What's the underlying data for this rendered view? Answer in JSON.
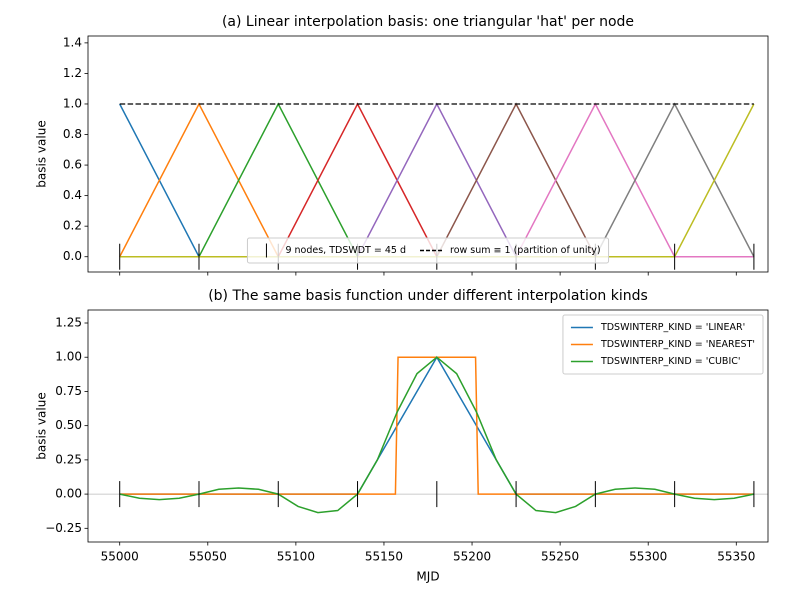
{
  "chart_data": [
    {
      "type": "line",
      "title": "(a) Linear interpolation basis: one triangular 'hat' per node",
      "ylabel": "basis value",
      "x": [
        55000,
        55045,
        55090,
        55135,
        55180,
        55225,
        55270,
        55315,
        55360
      ],
      "series": [
        {
          "color": "#1f77b4",
          "values": [
            1,
            0,
            0,
            0,
            0,
            0,
            0,
            0,
            0
          ]
        },
        {
          "color": "#ff7f0e",
          "values": [
            0,
            1,
            0,
            0,
            0,
            0,
            0,
            0,
            0
          ]
        },
        {
          "color": "#2ca02c",
          "values": [
            0,
            0,
            1,
            0,
            0,
            0,
            0,
            0,
            0
          ]
        },
        {
          "color": "#d62728",
          "values": [
            0,
            0,
            0,
            1,
            0,
            0,
            0,
            0,
            0
          ]
        },
        {
          "color": "#9467bd",
          "values": [
            0,
            0,
            0,
            0,
            1,
            0,
            0,
            0,
            0
          ]
        },
        {
          "color": "#8c564b",
          "values": [
            0,
            0,
            0,
            0,
            0,
            1,
            0,
            0,
            0
          ]
        },
        {
          "color": "#e377c2",
          "values": [
            0,
            0,
            0,
            0,
            0,
            0,
            1,
            0,
            0
          ]
        },
        {
          "color": "#7f7f7f",
          "values": [
            0,
            0,
            0,
            0,
            0,
            0,
            0,
            1,
            0
          ]
        },
        {
          "color": "#bcbd22",
          "values": [
            0,
            0,
            0,
            0,
            0,
            0,
            0,
            0,
            1
          ]
        },
        {
          "name": "row sum ≡ 1 (partition of unity)",
          "color": "#000000",
          "style": "dashed",
          "values": [
            1,
            1,
            1,
            1,
            1,
            1,
            1,
            1,
            1
          ]
        }
      ],
      "nodes": {
        "name": "9 nodes, TDSWDT = 45 d",
        "color": "#000000",
        "x": [
          55000,
          55045,
          55090,
          55135,
          55180,
          55225,
          55270,
          55315,
          55360
        ]
      },
      "xlim": [
        54982,
        55368
      ],
      "xticks": [
        55000,
        55050,
        55100,
        55150,
        55200,
        55250,
        55300,
        55350
      ],
      "ylim": [
        -0.1,
        1.445
      ],
      "yticks": [
        {
          "value": 0,
          "label": "0.0"
        },
        0.2,
        0.4,
        0.6,
        0.8,
        {
          "value": 1,
          "label": "1.0"
        },
        1.2,
        1.4
      ],
      "legend": "lower center",
      "legend_columns": 2
    },
    {
      "type": "line",
      "title": "(b) The same basis function under different interpolation kinds",
      "ylabel": "basis value",
      "xlabel": "MJD",
      "series": [
        {
          "name": "TDSWINTERP_KIND = 'LINEAR'",
          "color": "#1f77b4",
          "x": [
            55000,
            55045,
            55090,
            55135,
            55180,
            55225,
            55270,
            55315,
            55360
          ],
          "values": [
            0,
            0,
            0,
            0,
            1,
            0,
            0,
            0,
            0
          ]
        },
        {
          "name": "TDSWINTERP_KIND = 'NEAREST'",
          "color": "#ff7f0e",
          "x": [
            55000,
            55156.5,
            55158,
            55202,
            55203.5,
            55360
          ],
          "values": [
            0,
            0,
            1,
            1,
            0,
            0
          ]
        },
        {
          "name": "TDSWINTERP_KIND = 'CUBIC'",
          "color": "#2ca02c",
          "x": [
            55000,
            55011.25,
            55022.5,
            55033.75,
            55045,
            55056.25,
            55067.5,
            55078.75,
            55090,
            55101.25,
            55112.5,
            55123.75,
            55135,
            55146.25,
            55157.5,
            55168.75,
            55180,
            55191.25,
            55202.5,
            55213.75,
            55225,
            55236.25,
            55247.5,
            55258.75,
            55270,
            55281.25,
            55292.5,
            55303.75,
            55315,
            55326.25,
            55337.5,
            55348.75,
            55360
          ],
          "values": [
            0,
            -0.03,
            -0.04,
            -0.03,
            0,
            0.035,
            0.045,
            0.035,
            0,
            -0.09,
            -0.135,
            -0.12,
            0,
            0.25,
            0.6,
            0.88,
            1,
            0.88,
            0.6,
            0.25,
            0,
            -0.12,
            -0.135,
            -0.09,
            0,
            0.035,
            0.045,
            0.035,
            0,
            -0.03,
            -0.04,
            -0.03,
            0
          ]
        }
      ],
      "nodes": {
        "color": "#000000",
        "x": [
          55000,
          55045,
          55090,
          55135,
          55180,
          55225,
          55270,
          55315,
          55360
        ]
      },
      "reference_line": {
        "y": 0,
        "color": "#bbbbbb"
      },
      "xlim": [
        54982,
        55368
      ],
      "xticks": [
        55000,
        55050,
        55100,
        55150,
        55200,
        55250,
        55300,
        55350
      ],
      "ylim": [
        -0.35,
        1.345
      ],
      "yticks": [
        {
          "value": -0.25,
          "label": "−0.25"
        },
        {
          "value": 0,
          "label": "0.00"
        },
        {
          "value": 0.25,
          "label": "0.25"
        },
        {
          "value": 0.5,
          "label": "0.50"
        },
        {
          "value": 0.75,
          "label": "0.75"
        },
        {
          "value": 1,
          "label": "1.00"
        },
        {
          "value": 1.25,
          "label": "1.25"
        }
      ],
      "legend": "upper right",
      "legend_columns": 1
    }
  ]
}
